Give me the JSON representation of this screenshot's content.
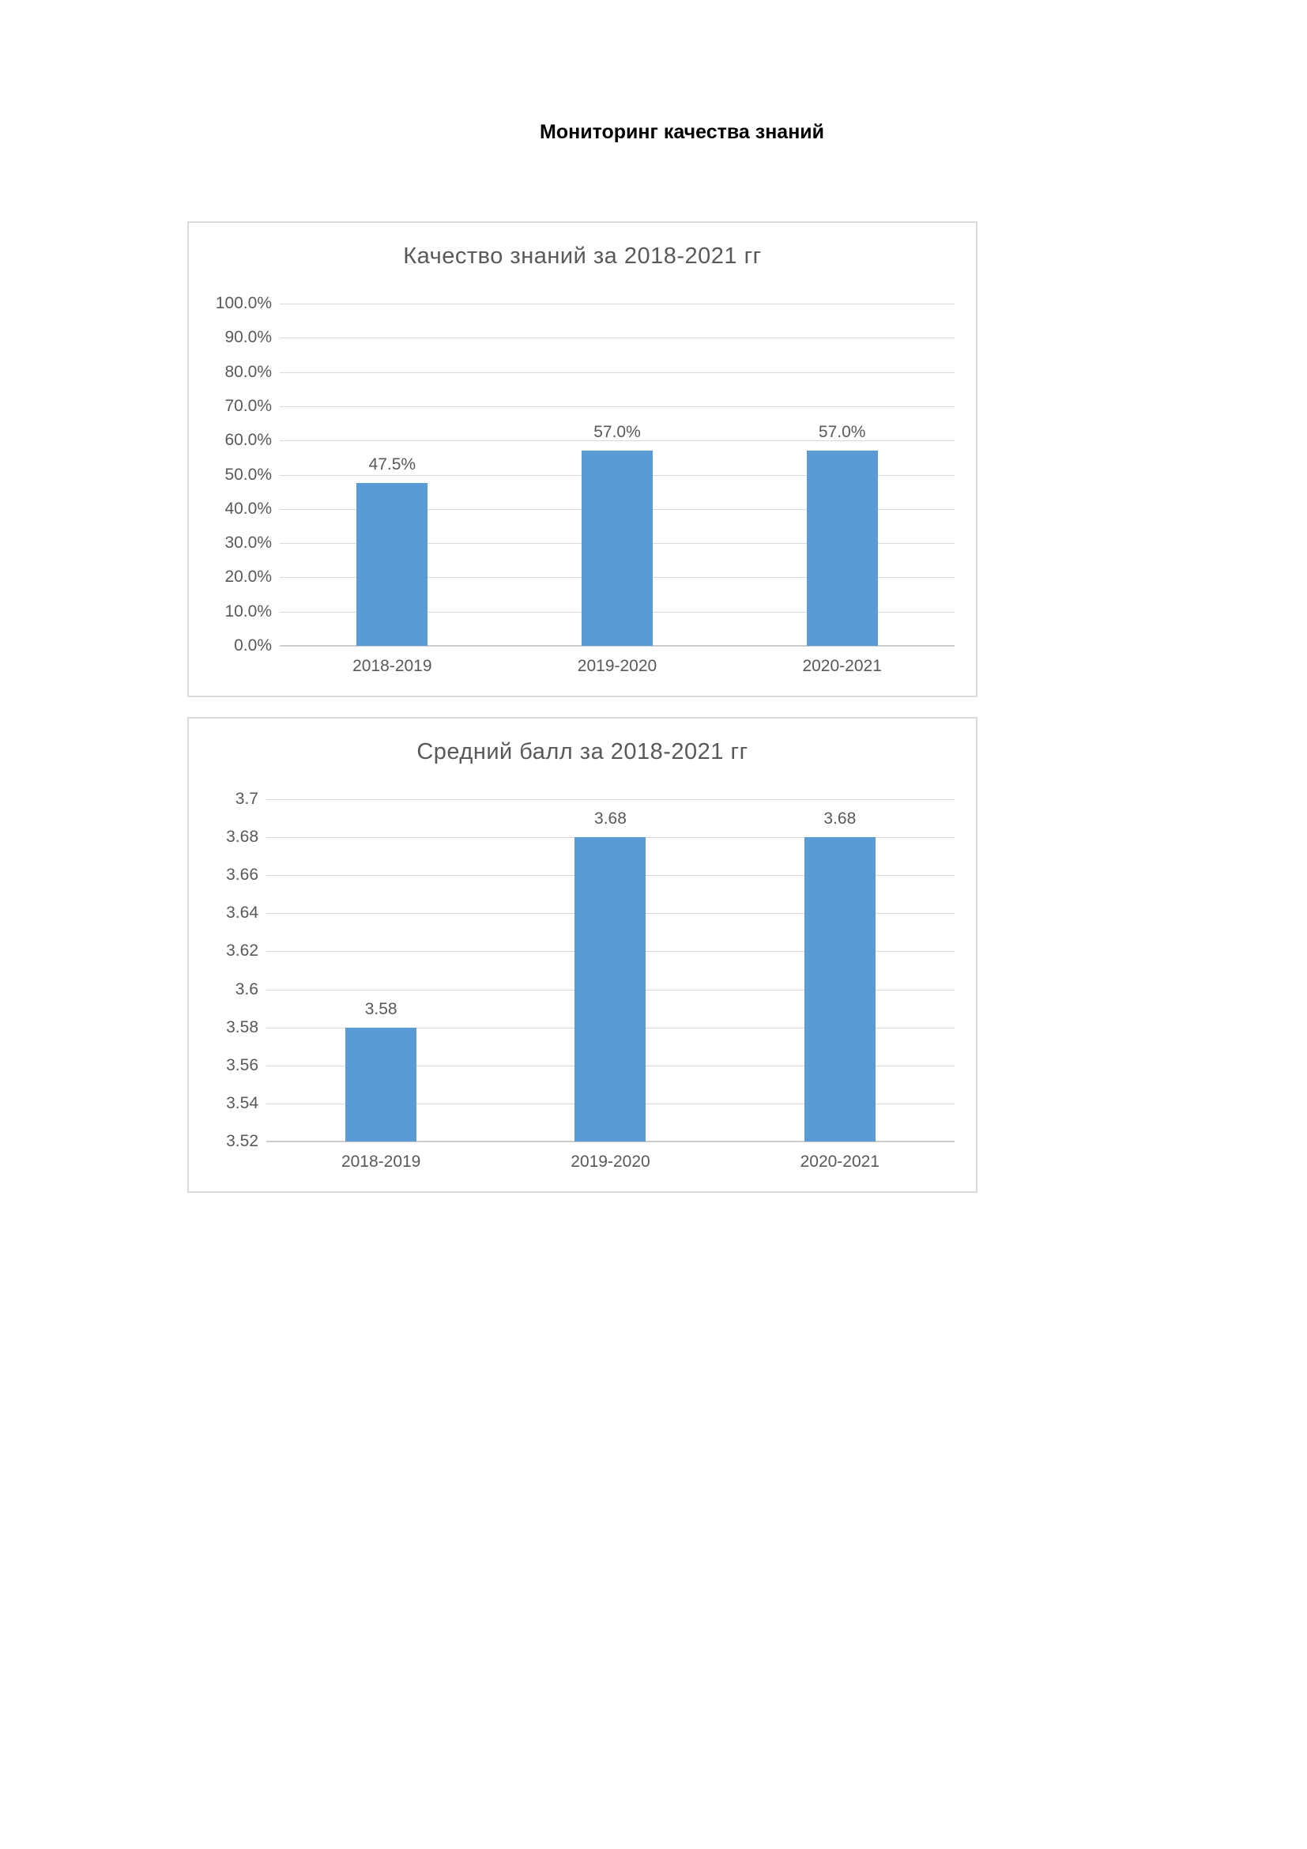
{
  "page": {
    "title": "Мониторинг качества знаний"
  },
  "chart_data": [
    {
      "type": "bar",
      "title": "Качество знаний за 2018-2021 гг",
      "categories": [
        "2018-2019",
        "2019-2020",
        "2020-2021"
      ],
      "values": [
        47.5,
        57.0,
        57.0
      ],
      "value_labels": [
        "47.5%",
        "57.0%",
        "57.0%"
      ],
      "xlabel": "",
      "ylabel": "",
      "ylim": [
        0,
        100
      ],
      "y_ticks": [
        "100.0%",
        "90.0%",
        "80.0%",
        "70.0%",
        "60.0%",
        "50.0%",
        "40.0%",
        "30.0%",
        "20.0%",
        "10.0%",
        "0.0%"
      ],
      "grid": true,
      "legend": "none",
      "bar_color": "#5B9BD5"
    },
    {
      "type": "bar",
      "title": "Средний балл за 2018-2021 гг",
      "categories": [
        "2018-2019",
        "2019-2020",
        "2020-2021"
      ],
      "values": [
        3.58,
        3.68,
        3.68
      ],
      "value_labels": [
        "3.58",
        "3.68",
        "3.68"
      ],
      "xlabel": "",
      "ylabel": "",
      "ylim": [
        3.52,
        3.7
      ],
      "y_ticks": [
        "3.7",
        "3.68",
        "3.66",
        "3.64",
        "3.62",
        "3.6",
        "3.58",
        "3.56",
        "3.54",
        "3.52"
      ],
      "grid": true,
      "legend": "none",
      "bar_color": "#5B9BD5"
    }
  ],
  "colors": {
    "bar": "#5B9BD5",
    "gridline": "#D9D9D9",
    "axis_text": "#595959",
    "chart_border": "#D9D9D9",
    "title_text": "#000000"
  }
}
